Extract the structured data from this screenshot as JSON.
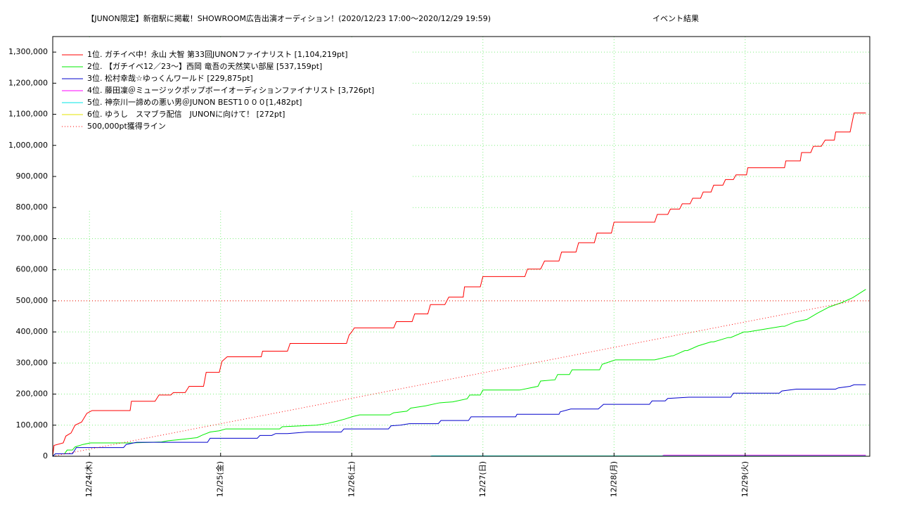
{
  "chart_data": {
    "type": "line",
    "title": "【JUNON限定】新宿駅に掲載！SHOWROOM広告出演オーディション！(2020/12/23 17:00〜2020/12/29 19:59)",
    "subtitle": "イベント結果",
    "xlim": [
      23.72,
      29.95
    ],
    "xticks": [
      {
        "value": 24,
        "label": "12/24(木)"
      },
      {
        "value": 25,
        "label": "12/25(金)"
      },
      {
        "value": 26,
        "label": "12/26(土)"
      },
      {
        "value": 27,
        "label": "12/27(日)"
      },
      {
        "value": 28,
        "label": "12/28(月)"
      },
      {
        "value": 29,
        "label": "12/29(火)"
      }
    ],
    "ylim": [
      0,
      1350000
    ],
    "yticks": [
      0,
      {
        "value": 100000,
        "label": "100,000"
      },
      {
        "value": 200000,
        "label": "200,000"
      },
      {
        "value": 300000,
        "label": "300,000"
      },
      {
        "value": 400000,
        "label": "400,000"
      },
      {
        "value": 500000,
        "label": "500,000"
      },
      {
        "value": 600000,
        "label": "600,000"
      },
      {
        "value": 700000,
        "label": "700,000"
      },
      {
        "value": 800000,
        "label": "800,000"
      },
      {
        "value": 900000,
        "label": "900,000"
      },
      {
        "value": 1000000,
        "label": "1,000,000"
      },
      {
        "value": 1100000,
        "label": "1,100,000"
      },
      {
        "value": 1200000,
        "label": "1,200,000"
      },
      {
        "value": 1300000,
        "label": "1,300,000"
      }
    ],
    "grid": true,
    "hline": 500000,
    "legend": "upper-left",
    "series": [
      {
        "name": "1位. ガチイベ中！永山 大智 第33回JUNONファイナリスト [1,104,219pt]",
        "color": "#ff0000",
        "x": [
          23.72,
          23.73,
          23.8,
          23.82,
          23.86,
          23.89,
          23.94,
          23.98,
          24.02,
          24.31,
          24.32,
          24.5,
          24.53,
          24.62,
          24.64,
          24.73,
          24.76,
          24.87,
          24.89,
          24.99,
          25.01,
          25.05,
          25.31,
          25.32,
          25.51,
          25.53,
          25.96,
          25.98,
          26.0,
          26.02,
          26.32,
          26.34,
          26.46,
          26.48,
          26.58,
          26.6,
          26.71,
          26.74,
          26.85,
          26.86,
          26.98,
          27.0,
          27.32,
          27.34,
          27.44,
          27.47,
          27.58,
          27.6,
          27.71,
          27.73,
          27.85,
          27.87,
          27.98,
          28.0,
          28.31,
          28.33,
          28.41,
          28.43,
          28.5,
          28.52,
          28.58,
          28.6,
          28.66,
          28.68,
          28.74,
          28.76,
          28.83,
          28.85,
          28.91,
          28.93,
          29.01,
          29.02,
          29.3,
          29.31,
          29.42,
          29.43,
          29.5,
          29.52,
          29.58,
          29.61,
          29.68,
          29.69,
          29.8,
          29.83,
          29.92
        ],
        "values": [
          0,
          35000,
          43000,
          65000,
          75000,
          100000,
          110000,
          138000,
          147000,
          147000,
          177000,
          177000,
          197000,
          197000,
          205000,
          205000,
          225000,
          225000,
          270000,
          270000,
          305000,
          320000,
          320000,
          338000,
          338000,
          363000,
          363000,
          390000,
          400000,
          413000,
          413000,
          433000,
          433000,
          458000,
          458000,
          488000,
          488000,
          512000,
          512000,
          545000,
          545000,
          578000,
          578000,
          602000,
          602000,
          628000,
          628000,
          657000,
          657000,
          687000,
          687000,
          718000,
          718000,
          753000,
          753000,
          778000,
          778000,
          795000,
          795000,
          812000,
          812000,
          830000,
          830000,
          850000,
          850000,
          872000,
          872000,
          890000,
          890000,
          905000,
          905000,
          928000,
          928000,
          950000,
          950000,
          977000,
          977000,
          997000,
          997000,
          1017000,
          1017000,
          1043000,
          1043000,
          1104000,
          1104000
        ]
      },
      {
        "name": "2位. 【ガチイベ12／23〜】西岡 竜吾の天然笑い部屋 [537,159pt]",
        "color": "#00ee00",
        "x": [
          23.72,
          23.74,
          23.81,
          23.83,
          23.87,
          23.89,
          23.95,
          24.01,
          24.32,
          24.55,
          24.6,
          24.72,
          24.82,
          24.86,
          24.92,
          24.99,
          25.04,
          25.45,
          25.47,
          25.57,
          25.73,
          25.81,
          25.88,
          25.95,
          26.01,
          26.06,
          26.29,
          26.32,
          26.42,
          26.45,
          26.56,
          26.67,
          26.77,
          26.88,
          26.9,
          26.98,
          27.0,
          27.28,
          27.42,
          27.44,
          27.55,
          27.57,
          27.66,
          27.68,
          27.89,
          27.91,
          28.01,
          28.31,
          28.44,
          28.45,
          28.54,
          28.56,
          28.64,
          28.74,
          28.76,
          28.87,
          28.89,
          28.99,
          29.02,
          29.28,
          29.3,
          29.38,
          29.47,
          29.55,
          29.64,
          29.74,
          29.82,
          29.92
        ],
        "values": [
          0,
          8000,
          8000,
          20000,
          20000,
          30000,
          38000,
          43000,
          43000,
          46000,
          50000,
          55000,
          60000,
          68000,
          78000,
          82000,
          88000,
          88000,
          95000,
          97000,
          100000,
          105000,
          112000,
          120000,
          128000,
          133000,
          133000,
          140000,
          145000,
          155000,
          162000,
          172000,
          175000,
          185000,
          197000,
          197000,
          213000,
          213000,
          225000,
          242000,
          246000,
          263000,
          263000,
          278000,
          278000,
          296000,
          310000,
          310000,
          323000,
          323000,
          340000,
          340000,
          355000,
          368000,
          368000,
          382000,
          382000,
          400000,
          400000,
          418000,
          418000,
          432000,
          440000,
          460000,
          480000,
          495000,
          510000,
          537000
        ]
      },
      {
        "name": "3位. 松村幸哉☆ゆっくんワールド [229,875pt]",
        "color": "#0000cc",
        "x": [
          23.72,
          23.74,
          23.87,
          23.9,
          24.26,
          24.28,
          24.36,
          24.9,
          24.92,
          25.28,
          25.3,
          25.39,
          25.42,
          25.51,
          25.66,
          25.92,
          25.94,
          26.28,
          26.3,
          26.37,
          26.44,
          26.66,
          26.68,
          26.89,
          26.91,
          27.25,
          27.26,
          27.58,
          27.59,
          27.67,
          27.88,
          27.92,
          28.27,
          28.29,
          28.39,
          28.41,
          28.57,
          28.89,
          28.91,
          29.26,
          29.28,
          29.39,
          29.69,
          29.71,
          29.8,
          29.83,
          29.92
        ],
        "values": [
          0,
          8000,
          8000,
          28000,
          28000,
          38000,
          45000,
          45000,
          58000,
          58000,
          67000,
          67000,
          73000,
          73000,
          78000,
          78000,
          88000,
          88000,
          98000,
          100000,
          105000,
          105000,
          115000,
          115000,
          127000,
          127000,
          135000,
          135000,
          143000,
          152000,
          152000,
          167000,
          167000,
          178000,
          178000,
          186000,
          190000,
          190000,
          203000,
          203000,
          210000,
          216000,
          216000,
          220000,
          225000,
          230000,
          230000
        ]
      },
      {
        "name": "4位. 藤田凜＠ミュージックポップボーイオーディションファイナリスト [3,726pt]",
        "color": "#ff00ff",
        "x": [
          23.72,
          28.36,
          28.38,
          29.92
        ],
        "values": [
          0,
          0,
          3726,
          3726
        ]
      },
      {
        "name": "5位. 神奈川一諦めの悪い男＠JUNON BEST1０００[1,482pt]",
        "color": "#00e5e5",
        "x": [
          23.72,
          26.6,
          26.61,
          29.92
        ],
        "values": [
          0,
          0,
          1482,
          1482
        ]
      },
      {
        "name": "6位. ゆうし　スマブラ配信　JUNONに向けて！ [272pt]",
        "color": "#e5e500",
        "x": [
          23.72,
          29.92
        ],
        "values": [
          0,
          272
        ]
      },
      {
        "name": "500,000pt獲得ライン",
        "color": "#ff0000",
        "style": "dotted",
        "x": [
          23.72,
          29.83
        ],
        "values": [
          0,
          500000
        ]
      }
    ]
  }
}
